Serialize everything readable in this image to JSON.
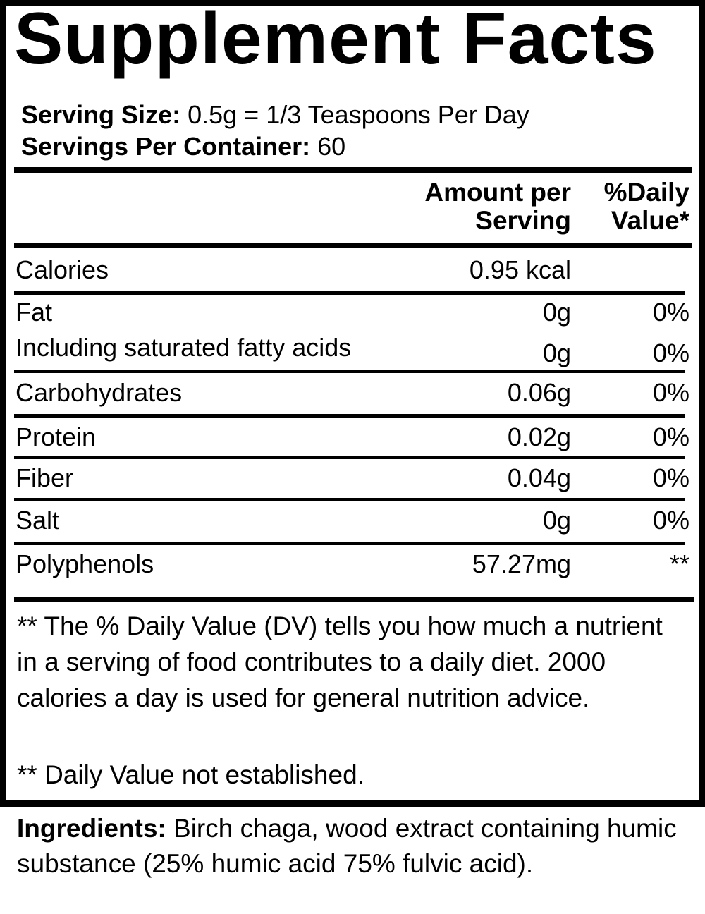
{
  "title": "Supplement Facts",
  "serving_size": {
    "label": "Serving Size:",
    "value": "0.5g = 1/3 Teaspoons Per Day"
  },
  "servings_per_container": {
    "label": "Servings Per Container:",
    "value": "60"
  },
  "headers": {
    "amount_line1": "Amount per",
    "amount_line2": "Serving",
    "dv_line1": "%Daily",
    "dv_line2": "Value*"
  },
  "rows": [
    {
      "name": "Calories",
      "amount": "0.95 kcal",
      "dv": ""
    },
    {
      "name": "Fat",
      "amount": "0g",
      "dv": "0%"
    },
    {
      "name": "Including saturated fatty acids",
      "amount": "0g",
      "dv": "0%"
    },
    {
      "name": "Carbohydrates",
      "amount": "0.06g",
      "dv": "0%"
    },
    {
      "name": "Protein",
      "amount": "0.02g",
      "dv": "0%"
    },
    {
      "name": "Fiber",
      "amount": "0.04g",
      "dv": "0%"
    },
    {
      "name": "Salt",
      "amount": "0g",
      "dv": "0%"
    },
    {
      "name": "Polyphenols",
      "amount": "57.27mg",
      "dv": "**"
    }
  ],
  "footnotes": {
    "dv_explanation": "** The % Daily Value (DV) tells you how much a nutrient in a serving of food contributes to a daily diet. 2000 calories a day is used for general nutrition advice.",
    "not_established": "** Daily Value not established."
  },
  "ingredients": {
    "label": "Ingredients:",
    "text": "Birch chaga, wood extract containing humic substance (25% humic acid 75% fulvic acid)."
  }
}
